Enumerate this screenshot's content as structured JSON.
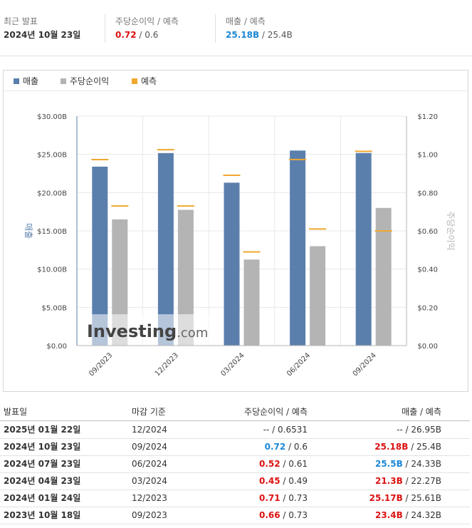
{
  "summary": {
    "latest_label": "최근 발표",
    "latest_date": "2024년 10월 23일",
    "eps_label": "주당순이익 / 예측",
    "eps_actual": "0.72",
    "eps_forecast": "0.6",
    "rev_label": "매출 / 예측",
    "rev_actual": "25.18B",
    "rev_forecast": "25.4B"
  },
  "legend": {
    "revenue": "매출",
    "eps": "주당순이익",
    "forecast": "예측"
  },
  "colors": {
    "revenue": "#5b7fad",
    "eps": "#b4b4b4",
    "forecast": "#f0a830",
    "negative": "#dd1111",
    "positive": "#1b87d6"
  },
  "watermark": "Investing.com",
  "chart_data": {
    "type": "bar",
    "categories": [
      "09/2023",
      "12/2023",
      "03/2024",
      "06/2024",
      "09/2024"
    ],
    "series": [
      {
        "name": "매출",
        "axis": "left",
        "values": [
          23.4,
          25.17,
          21.3,
          25.5,
          25.18
        ]
      },
      {
        "name": "주당순이익",
        "axis": "right",
        "values": [
          0.66,
          0.71,
          0.45,
          0.52,
          0.72
        ]
      }
    ],
    "forecasts": {
      "revenue": [
        24.32,
        25.61,
        22.27,
        24.33,
        25.4
      ],
      "eps": [
        0.73,
        0.73,
        0.49,
        0.61,
        0.6
      ]
    },
    "ylabel": "매출",
    "y2label": "주당순이익",
    "ylim": [
      0,
      30
    ],
    "y2lim": [
      0,
      1.2
    ],
    "yticks": [
      "$0.00",
      "$5.00B",
      "$10.00B",
      "$15.00B",
      "$20.00B",
      "$25.00B",
      "$30.00B"
    ],
    "y2ticks": [
      "$0.00",
      "$0.20",
      "$0.40",
      "$0.60",
      "$0.80",
      "$1.00",
      "$1.20"
    ],
    "legend_position": "top-left"
  },
  "table": {
    "headers": {
      "date": "발표일",
      "period": "마감 기준",
      "eps": "주당순이익 / 예측",
      "rev": "매출 / 예측"
    },
    "rows": [
      {
        "date": "2025년 01월 22일",
        "period": "12/2024",
        "eps_actual": "--",
        "eps_forecast": "0.6531",
        "rev_actual": "--",
        "rev_forecast": "26.95B"
      },
      {
        "date": "2024년 10월 23일",
        "period": "09/2024",
        "eps_actual": "0.72",
        "eps_forecast": "0.6",
        "rev_actual": "25.18B",
        "rev_forecast": "25.4B"
      },
      {
        "date": "2024년 07월 23일",
        "period": "06/2024",
        "eps_actual": "0.52",
        "eps_forecast": "0.61",
        "rev_actual": "25.5B",
        "rev_forecast": "24.33B"
      },
      {
        "date": "2024년 04월 23일",
        "period": "03/2024",
        "eps_actual": "0.45",
        "eps_forecast": "0.49",
        "rev_actual": "21.3B",
        "rev_forecast": "22.27B"
      },
      {
        "date": "2024년 01월 24일",
        "period": "12/2023",
        "eps_actual": "0.71",
        "eps_forecast": "0.73",
        "rev_actual": "25.17B",
        "rev_forecast": "25.61B"
      },
      {
        "date": "2023년 10월 18일",
        "period": "09/2023",
        "eps_actual": "0.66",
        "eps_forecast": "0.73",
        "rev_actual": "23.4B",
        "rev_forecast": "24.32B"
      }
    ]
  }
}
